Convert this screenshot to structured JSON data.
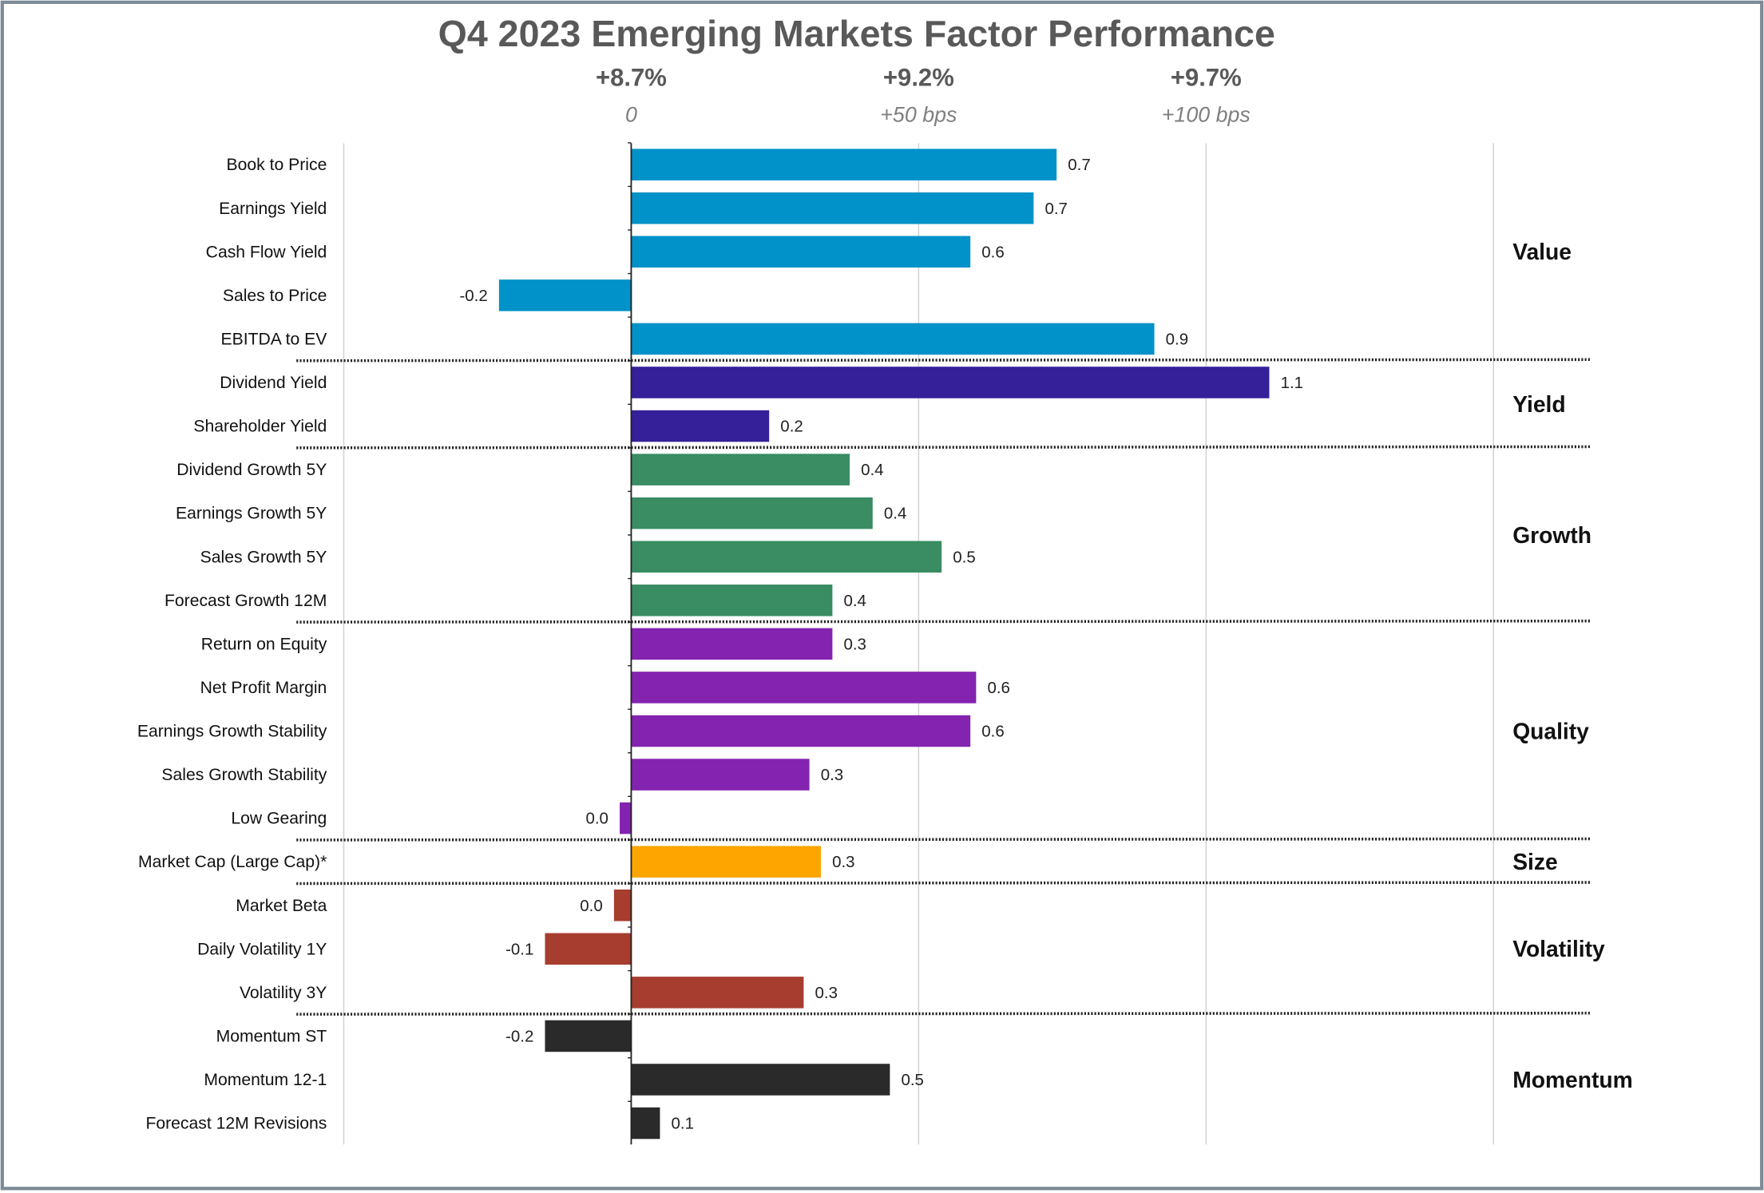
{
  "chart_data": {
    "type": "bar",
    "orientation": "horizontal",
    "title": "Q4 2023 Emerging Markets Factor Performance",
    "x_axis": {
      "unit": "percent excess return",
      "xlim": [
        -0.5,
        1.5
      ],
      "ticks": [
        {
          "value": 0,
          "top_label": "+8.7%",
          "sub_label": "0"
        },
        {
          "value": 0.5,
          "top_label": "+9.2%",
          "sub_label": "+50 bps"
        },
        {
          "value": 1.0,
          "top_label": "+9.7%",
          "sub_label": "+100 bps"
        }
      ],
      "grid": true
    },
    "groups": [
      {
        "name": "Value",
        "color": "#0092c8",
        "items": [
          {
            "category": "Book to Price",
            "value": 0.74,
            "label": "0.7"
          },
          {
            "category": "Earnings Yield",
            "value": 0.7,
            "label": "0.7"
          },
          {
            "category": "Cash Flow Yield",
            "value": 0.59,
            "label": "0.6"
          },
          {
            "category": "Sales to Price",
            "value": -0.23,
            "label": "-0.2"
          },
          {
            "category": "EBITDA to EV",
            "value": 0.91,
            "label": "0.9"
          }
        ]
      },
      {
        "name": "Yield",
        "color": "#35209a",
        "items": [
          {
            "category": "Dividend Yield",
            "value": 1.11,
            "label": "1.1"
          },
          {
            "category": "Shareholder Yield",
            "value": 0.24,
            "label": "0.2"
          }
        ]
      },
      {
        "name": "Growth",
        "color": "#3a8c62",
        "items": [
          {
            "category": "Dividend Growth 5Y",
            "value": 0.38,
            "label": "0.4"
          },
          {
            "category": "Earnings Growth 5Y",
            "value": 0.42,
            "label": "0.4"
          },
          {
            "category": "Sales Growth 5Y",
            "value": 0.54,
            "label": "0.5"
          },
          {
            "category": "Forecast Growth 12M",
            "value": 0.35,
            "label": "0.4"
          }
        ]
      },
      {
        "name": "Quality",
        "color": "#8423b0",
        "items": [
          {
            "category": "Return on Equity",
            "value": 0.35,
            "label": "0.3"
          },
          {
            "category": "Net Profit Margin",
            "value": 0.6,
            "label": "0.6"
          },
          {
            "category": "Earnings Growth Stability",
            "value": 0.59,
            "label": "0.6"
          },
          {
            "category": "Sales Growth Stability",
            "value": 0.31,
            "label": "0.3"
          },
          {
            "category": "Low Gearing",
            "value": -0.02,
            "label": "0.0"
          }
        ]
      },
      {
        "name": "Size",
        "color": "#ffa500",
        "items": [
          {
            "category": "Market Cap (Large Cap)*",
            "value": 0.33,
            "label": "0.3"
          }
        ]
      },
      {
        "name": "Volatility",
        "color": "#a63d2f",
        "items": [
          {
            "category": "Market Beta",
            "value": -0.03,
            "label": "0.0"
          },
          {
            "category": "Daily Volatility 1Y",
            "value": -0.15,
            "label": "-0.1"
          },
          {
            "category": "Volatility 3Y",
            "value": 0.3,
            "label": "0.3"
          }
        ]
      },
      {
        "name": "Momentum",
        "color": "#2a2a2a",
        "items": [
          {
            "category": "Momentum ST",
            "value": -0.15,
            "label": "-0.2"
          },
          {
            "category": "Momentum 12-1",
            "value": 0.45,
            "label": "0.5"
          },
          {
            "category": "Forecast 12M Revisions",
            "value": 0.05,
            "label": "0.1"
          }
        ]
      }
    ]
  }
}
